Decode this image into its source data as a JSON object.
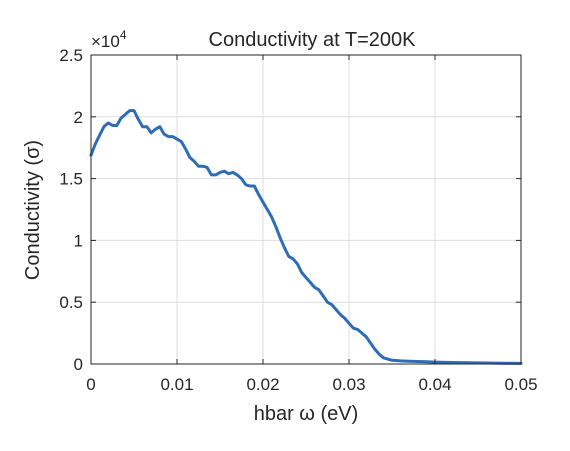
{
  "chart_data": {
    "type": "line",
    "title": "Conductivity at T=200K",
    "xlabel": "hbar  ω  (eV)",
    "ylabel": "Conductivity  (σ)",
    "y_multiplier_label": "×10",
    "y_multiplier_exponent": "4",
    "xlim": [
      0,
      0.05
    ],
    "ylim": [
      0,
      2.5
    ],
    "grid": true,
    "x_ticks": [
      0,
      0.01,
      0.02,
      0.03,
      0.04,
      0.05
    ],
    "x_tick_labels": [
      "0",
      "0.01",
      "0.02",
      "0.03",
      "0.04",
      "0.05"
    ],
    "y_ticks": [
      0,
      0.5,
      1,
      1.5,
      2,
      2.5
    ],
    "y_tick_labels": [
      "0",
      "0.5",
      "1",
      "1.5",
      "2",
      "2.5"
    ],
    "line_color": "#2e6db5",
    "series": [
      {
        "x": [
          0,
          0.0005,
          0.001,
          0.0015,
          0.002,
          0.0025,
          0.003,
          0.0035,
          0.004,
          0.0045,
          0.005,
          0.0055,
          0.006,
          0.0065,
          0.007,
          0.0075,
          0.008,
          0.0085,
          0.009,
          0.0095,
          0.01,
          0.0105,
          0.011,
          0.0115,
          0.012,
          0.0125,
          0.013,
          0.0135,
          0.014,
          0.0145,
          0.015,
          0.0155,
          0.016,
          0.0165,
          0.017,
          0.0175,
          0.018,
          0.0185,
          0.019,
          0.0195,
          0.02,
          0.0205,
          0.021,
          0.0215,
          0.022,
          0.0225,
          0.023,
          0.0235,
          0.024,
          0.0245,
          0.025,
          0.0255,
          0.026,
          0.0265,
          0.027,
          0.0275,
          0.028,
          0.0285,
          0.029,
          0.0295,
          0.03,
          0.0305,
          0.031,
          0.0315,
          0.032,
          0.0325,
          0.033,
          0.0335,
          0.034,
          0.0345,
          0.035,
          0.036,
          0.037,
          0.038,
          0.039,
          0.04,
          0.042,
          0.044,
          0.046,
          0.048,
          0.05
        ],
        "y": [
          1.69,
          1.78,
          1.85,
          1.92,
          1.95,
          1.93,
          1.93,
          1.99,
          2.02,
          2.05,
          2.05,
          1.98,
          1.92,
          1.92,
          1.87,
          1.9,
          1.92,
          1.86,
          1.84,
          1.84,
          1.82,
          1.8,
          1.74,
          1.67,
          1.64,
          1.6,
          1.6,
          1.59,
          1.53,
          1.53,
          1.55,
          1.56,
          1.54,
          1.55,
          1.53,
          1.5,
          1.45,
          1.44,
          1.44,
          1.37,
          1.31,
          1.25,
          1.19,
          1.11,
          1.02,
          0.94,
          0.87,
          0.85,
          0.81,
          0.74,
          0.7,
          0.66,
          0.62,
          0.6,
          0.55,
          0.5,
          0.48,
          0.44,
          0.4,
          0.37,
          0.33,
          0.29,
          0.28,
          0.25,
          0.22,
          0.17,
          0.12,
          0.08,
          0.05,
          0.04,
          0.03,
          0.025,
          0.022,
          0.02,
          0.018,
          0.015,
          0.012,
          0.01,
          0.008,
          0.006,
          0.005
        ]
      }
    ]
  }
}
